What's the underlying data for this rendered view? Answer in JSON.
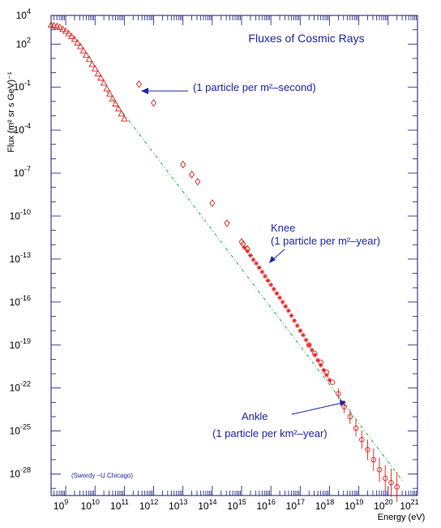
{
  "chart_data": {
    "type": "scatter",
    "title": "Fluxes of Cosmic Rays",
    "xlabel": "Energy (eV)",
    "ylabel": "Flux (m² sr s GeV)⁻¹",
    "x_scale": "log",
    "y_scale": "log",
    "xlim_log10": [
      8.5,
      21
    ],
    "ylim_log10": [
      -29.5,
      4
    ],
    "x_ticks": [
      {
        "base": "10",
        "exp": "9"
      },
      {
        "base": "10",
        "exp": "10"
      },
      {
        "base": "10",
        "exp": "11"
      },
      {
        "base": "10",
        "exp": "12"
      },
      {
        "base": "10",
        "exp": "13"
      },
      {
        "base": "10",
        "exp": "14"
      },
      {
        "base": "10",
        "exp": "15"
      },
      {
        "base": "10",
        "exp": "16"
      },
      {
        "base": "10",
        "exp": "17"
      },
      {
        "base": "10",
        "exp": "18"
      },
      {
        "base": "10",
        "exp": "19"
      },
      {
        "base": "10",
        "exp": "20"
      },
      {
        "base": "10",
        "exp": "21"
      }
    ],
    "y_ticks": [
      {
        "base": "10",
        "exp": "4"
      },
      {
        "base": "10",
        "exp": "2"
      },
      {
        "base": "10",
        "exp": "-1"
      },
      {
        "base": "10",
        "exp": "-4"
      },
      {
        "base": "10",
        "exp": "-7"
      },
      {
        "base": "10",
        "exp": "-10"
      },
      {
        "base": "10",
        "exp": "-13"
      },
      {
        "base": "10",
        "exp": "-16"
      },
      {
        "base": "10",
        "exp": "-19"
      },
      {
        "base": "10",
        "exp": "-22"
      },
      {
        "base": "10",
        "exp": "-25"
      },
      {
        "base": "10",
        "exp": "-28"
      }
    ],
    "colors": {
      "frame": "#1a1a7a",
      "data": "#e02020",
      "fit": "#22b14c",
      "annotation": "#1f23a6"
    },
    "fit_line": {
      "style": "dash-dot",
      "log10_x": [
        10.4,
        20.5
      ],
      "log10_y": [
        -1.3,
        -28.5
      ]
    },
    "series": [
      {
        "marker": "triangle",
        "log10_x": [
          8.5,
          8.6,
          8.7,
          8.8,
          8.9,
          9.0,
          9.1,
          9.2,
          9.3,
          9.4,
          9.5,
          9.6,
          9.7,
          9.8,
          9.9,
          10.0,
          10.1,
          10.2,
          10.3,
          10.4,
          10.5,
          10.6,
          10.7,
          10.8,
          10.9,
          11.0
        ],
        "log10_y": [
          3.35,
          3.3,
          3.25,
          3.18,
          3.05,
          2.92,
          2.75,
          2.55,
          2.35,
          2.1,
          1.85,
          1.55,
          1.25,
          0.95,
          0.6,
          0.3,
          -0.05,
          -0.35,
          -0.7,
          -1.1,
          -1.45,
          -1.8,
          -2.15,
          -2.5,
          -2.85,
          -3.2
        ]
      },
      {
        "marker": "diamond",
        "log10_x": [
          11.5,
          12.0,
          13.0,
          13.3,
          13.5,
          14.0,
          14.5,
          15.0,
          15.05,
          15.2
        ],
        "log10_y": [
          -0.8,
          -2.1,
          -6.4,
          -7.1,
          -7.6,
          -9.1,
          -10.5,
          -11.8,
          -11.95,
          -12.3
        ]
      },
      {
        "marker": "star",
        "log10_x": [
          15.1,
          15.2,
          15.3,
          15.4,
          15.5,
          15.6,
          15.7,
          15.8,
          15.9,
          16.0,
          16.1,
          16.2,
          16.3,
          16.4,
          16.5,
          16.6,
          16.7,
          16.8,
          16.9,
          17.0,
          17.1,
          17.2,
          17.3,
          17.4,
          17.5,
          17.6,
          17.7,
          17.8,
          17.9,
          18.0
        ],
        "log10_y": [
          -12.2,
          -12.45,
          -12.75,
          -13.05,
          -13.3,
          -13.6,
          -13.9,
          -14.2,
          -14.5,
          -14.8,
          -15.1,
          -15.4,
          -15.7,
          -16.0,
          -16.3,
          -16.6,
          -16.95,
          -17.3,
          -17.65,
          -18.0,
          -18.3,
          -18.65,
          -19.0,
          -19.35,
          -19.7,
          -20.05,
          -20.4,
          -20.75,
          -21.1,
          -21.45
        ]
      },
      {
        "marker": "circle",
        "log10_x": [
          17.3,
          17.5,
          17.7,
          17.9,
          18.1,
          18.3,
          18.5,
          18.7,
          18.9,
          19.1,
          19.3,
          19.5,
          19.7,
          19.9,
          20.1,
          20.3
        ],
        "log10_y": [
          -19.0,
          -19.6,
          -20.2,
          -20.9,
          -21.6,
          -22.4,
          -23.3,
          -24.0,
          -24.8,
          -25.6,
          -26.3,
          -27.0,
          -27.7,
          -28.3,
          -28.6,
          -28.9
        ]
      }
    ],
    "annotations": [
      {
        "text": "(1 particle per m²–second)"
      },
      {
        "line1": "Knee",
        "line2": "(1 particle per m²–year)"
      },
      {
        "line1": "Ankle",
        "line2": "(1 particle per km²–year)"
      },
      {
        "text": "(Swordy –U.Chicago)"
      }
    ]
  }
}
